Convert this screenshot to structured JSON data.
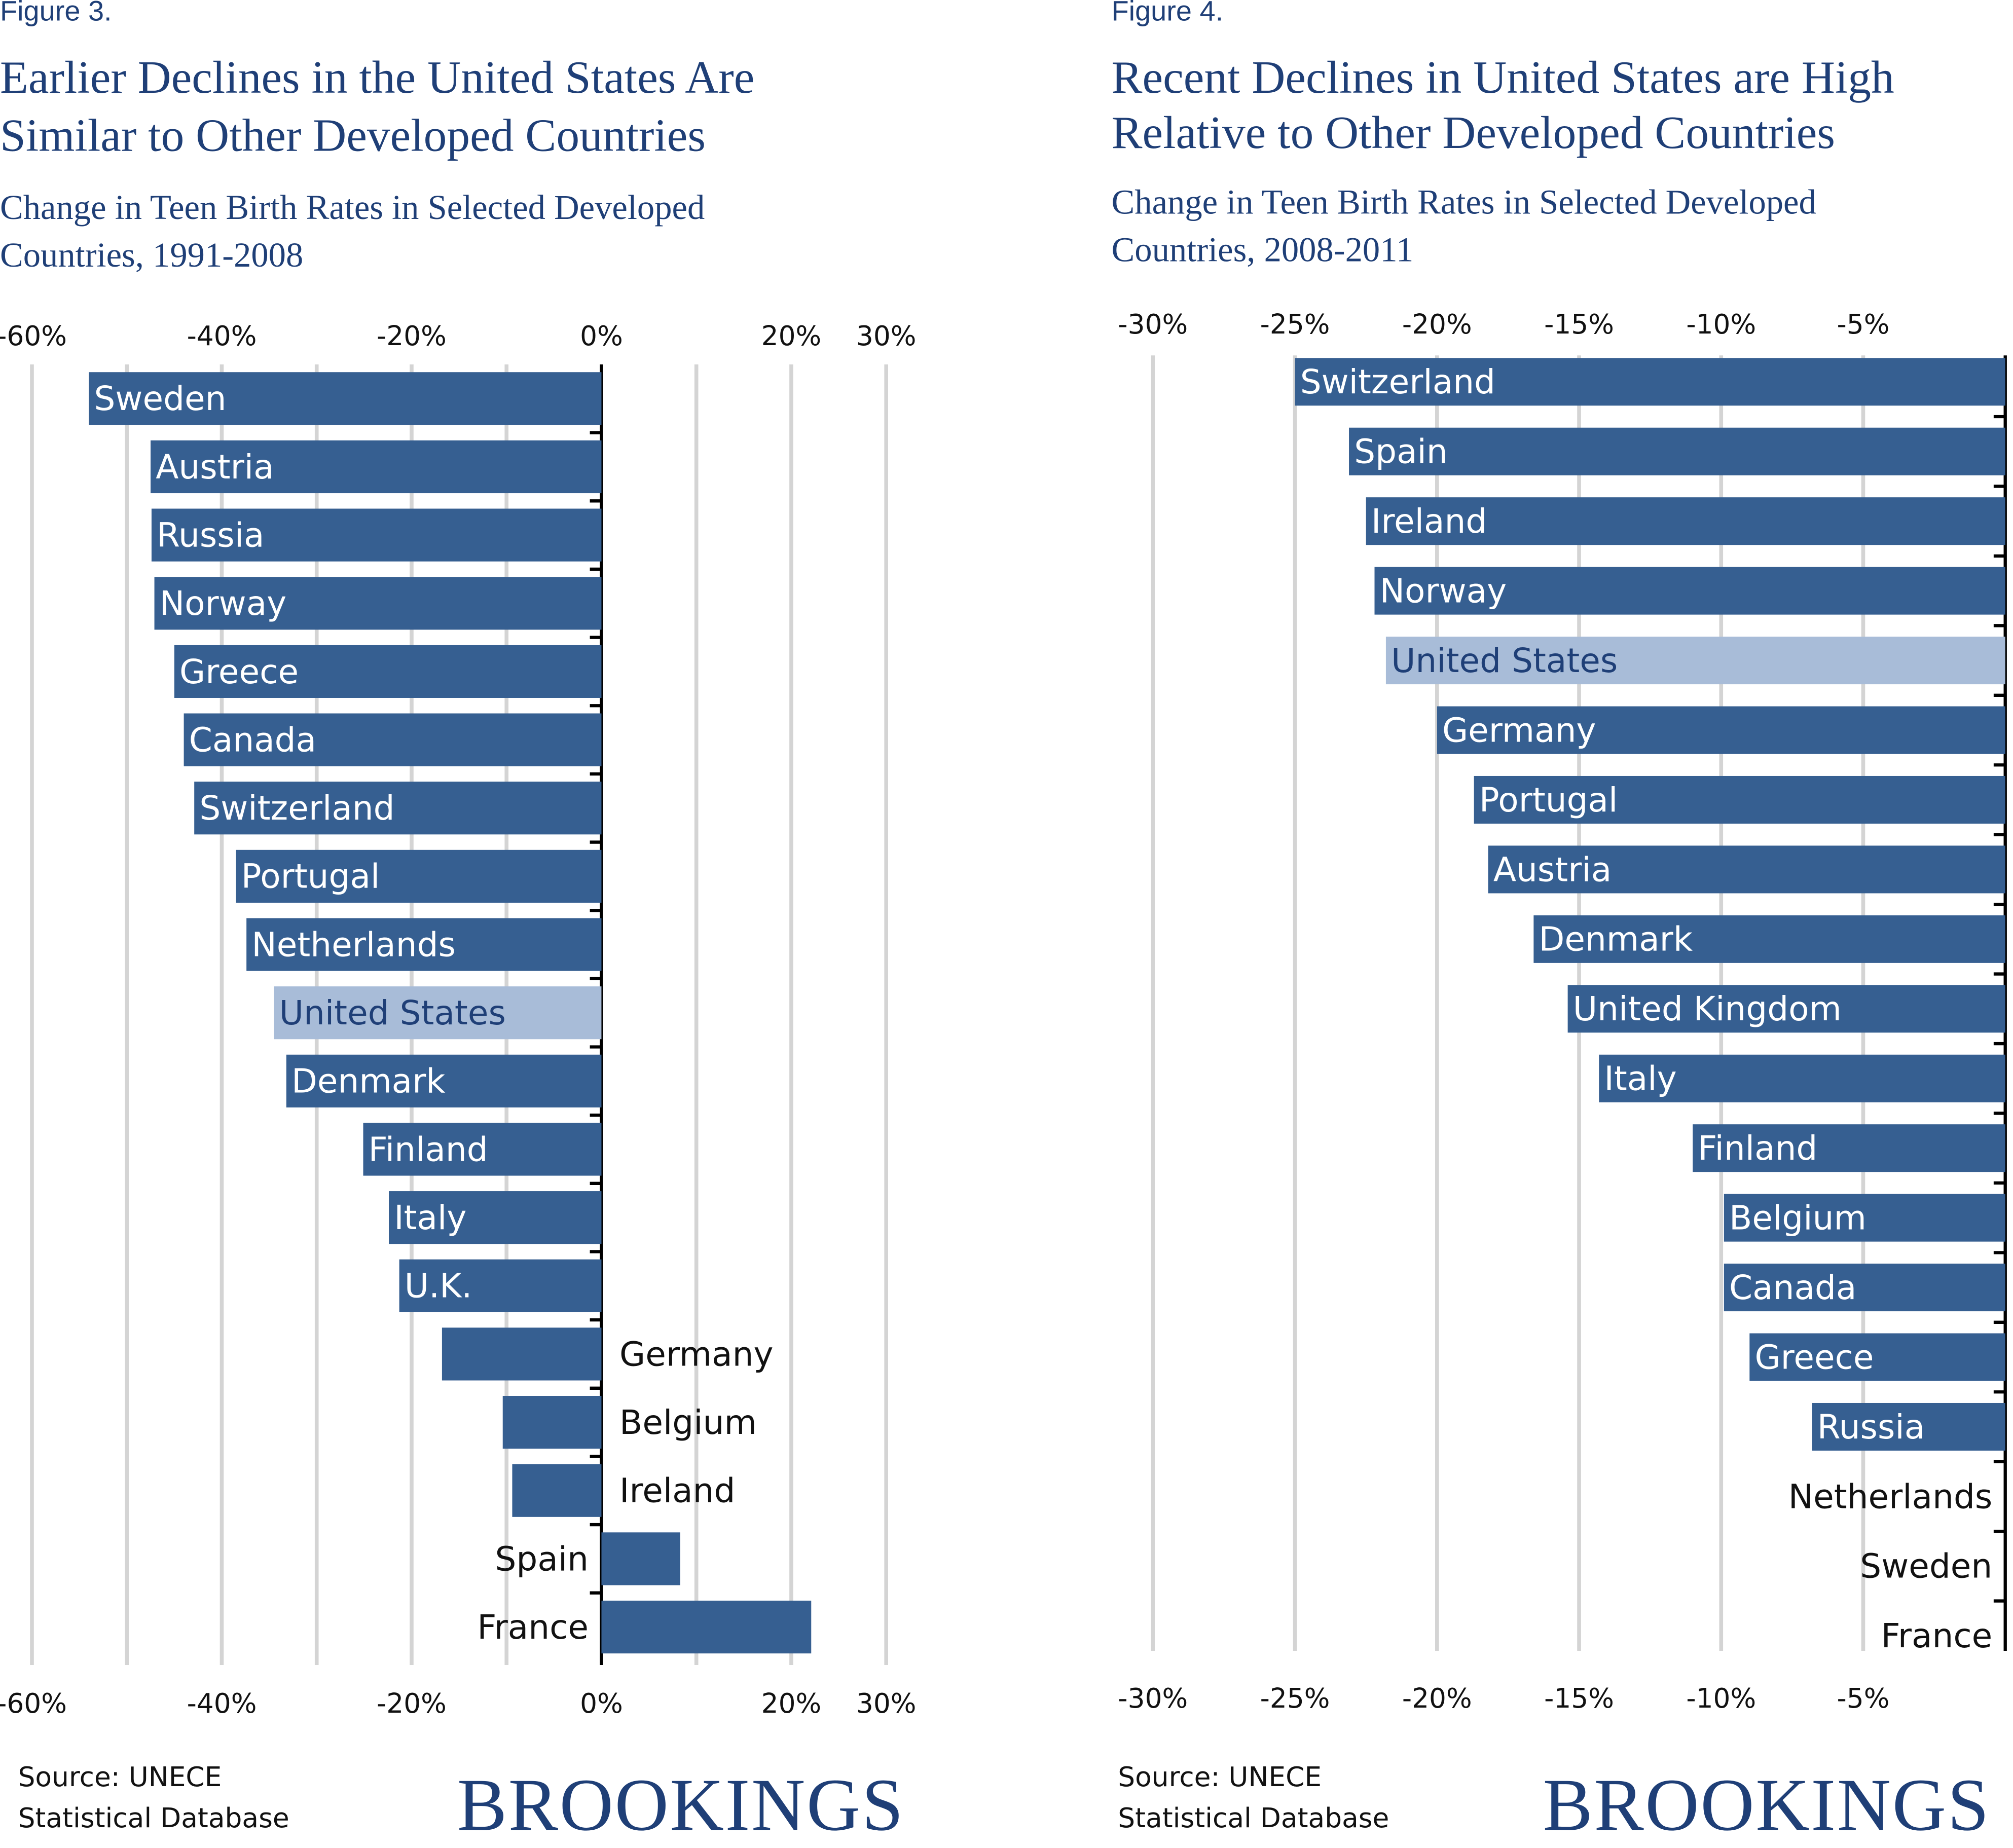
{
  "colors": {
    "bar": "#365f91",
    "highlight": "#a8bcd8",
    "highlight_text": "#1f3f77",
    "grid": "#d4d4d4",
    "axis": "#000000"
  },
  "figure3": {
    "label": "Figure 3.",
    "title_line1": "Earlier Declines in the United States Are",
    "title_line2": "Similar to Other Developed Countries",
    "subtitle_line1": "Change in Teen Birth Rates in Selected Developed",
    "subtitle_line2": "Countries, 1991-2008",
    "source_line1": "Source: UNECE",
    "source_line2": "Statistical Database",
    "logo": "BROOKINGS"
  },
  "figure4": {
    "label": "Figure 4.",
    "title_line1": "Recent Declines in United States are High",
    "title_line2": "Relative to Other Developed Countries",
    "subtitle_line1": "Change in Teen Birth Rates in Selected Developed",
    "subtitle_line2": "Countries, 2008-2011",
    "source_line1": "Source: UNECE",
    "source_line2": "Statistical Database",
    "logo": "BROOKINGS"
  },
  "chart_data": [
    {
      "type": "bar",
      "orientation": "horizontal",
      "title": "Earlier Declines in the United States Are Similar to Other Developed Countries",
      "xlabel": "",
      "ylabel": "",
      "xlim": [
        -60,
        30
      ],
      "gridlines": [
        -60,
        -50,
        -40,
        -30,
        -20,
        -10,
        0,
        10,
        20,
        30
      ],
      "tick_labels": [
        {
          "v": -60,
          "t": "-60%"
        },
        {
          "v": -40,
          "t": "-40%"
        },
        {
          "v": -20,
          "t": "-20%"
        },
        {
          "v": 0,
          "t": "0%"
        },
        {
          "v": 20,
          "t": "20%"
        },
        {
          "v": 30,
          "t": "30%"
        }
      ],
      "categories": [
        "Sweden",
        "Austria",
        "Russia",
        "Norway",
        "Greece",
        "Canada",
        "Switzerland",
        "Portugal",
        "Netherlands",
        "United States",
        "Denmark",
        "Finland",
        "Italy",
        "U.K.",
        "Germany",
        "Belgium",
        "Ireland",
        "Spain",
        "France"
      ],
      "values": [
        -54,
        -47.5,
        -47.4,
        -47.1,
        -45,
        -44,
        -42.9,
        -38.5,
        -37.4,
        -34.5,
        -33.2,
        -25.1,
        -22.4,
        -21.3,
        -16.8,
        -10.4,
        -9.4,
        8.3,
        22.1
      ],
      "highlight": "United States"
    },
    {
      "type": "bar",
      "orientation": "horizontal",
      "title": "Recent Declines in United States are High Relative to Other Developed Countries",
      "xlabel": "",
      "ylabel": "",
      "xlim": [
        -30,
        0
      ],
      "gridlines": [
        -30,
        -25,
        -20,
        -15,
        -10,
        -5
      ],
      "tick_labels": [
        {
          "v": -30,
          "t": "-30%"
        },
        {
          "v": -25,
          "t": "-25%"
        },
        {
          "v": -20,
          "t": "-20%"
        },
        {
          "v": -15,
          "t": "-15%"
        },
        {
          "v": -10,
          "t": "-10%"
        },
        {
          "v": -5,
          "t": "-5%"
        }
      ],
      "categories": [
        "Switzerland",
        "Spain",
        "Ireland",
        "Norway",
        "United States",
        "Germany",
        "Portugal",
        "Austria",
        "Denmark",
        "United Kingdom",
        "Italy",
        "Finland",
        "Belgium",
        "Canada",
        "Greece",
        "Russia",
        "Netherlands",
        "Sweden",
        "France"
      ],
      "values": [
        -25,
        -23.1,
        -22.5,
        -22.2,
        -21.8,
        -20,
        -18.7,
        -18.2,
        -16.6,
        -15.4,
        -14.3,
        -11,
        -9.9,
        -9.9,
        -9,
        -6.8,
        0,
        0,
        0
      ],
      "highlight": "United States"
    }
  ]
}
